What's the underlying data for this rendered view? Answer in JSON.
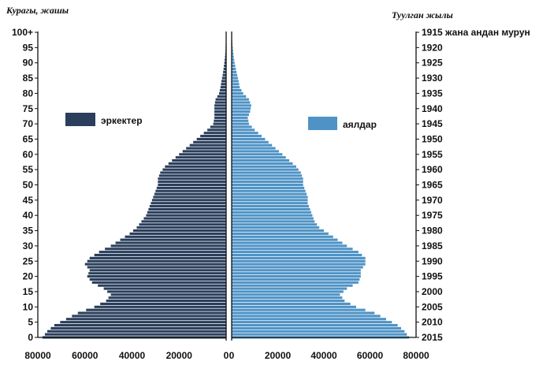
{
  "chart_data": {
    "type": "bar",
    "orientation": "horizontal",
    "subtype": "population-pyramid",
    "left_title": "Курагы, жашы",
    "right_title": "Туулган жылы",
    "age_tick_labels": [
      "100+",
      "95",
      "90",
      "85",
      "80",
      "75",
      "70",
      "65",
      "60",
      "55",
      "50",
      "45",
      "40",
      "35",
      "30",
      "25",
      "20",
      "15",
      "10",
      "5",
      "0"
    ],
    "year_tick_labels": [
      "1915 жана андан мурун",
      "1920",
      "1925",
      "1930",
      "1935",
      "1940",
      "1945",
      "1950",
      "1955",
      "1960",
      "1965",
      "1970",
      "1975",
      "1980",
      "1985",
      "1990",
      "1995",
      "2000",
      "2005",
      "2010",
      "2015"
    ],
    "x_tick_labels_left": [
      "80000",
      "60000",
      "40000",
      "20000",
      "0"
    ],
    "x_tick_labels_right": [
      "0",
      "20000",
      "40000",
      "60000",
      "80000"
    ],
    "xlim": [
      0,
      80000
    ],
    "age_range": [
      0,
      100
    ],
    "legend": {
      "position": "inside"
    },
    "series": [
      {
        "name": "эркектер",
        "side": "left",
        "color": "#2b3f5c",
        "age_points": [
          0,
          2,
          4,
          6,
          8,
          10,
          12,
          14,
          16,
          18,
          20,
          22,
          24,
          26,
          28,
          30,
          32,
          34,
          36,
          38,
          40,
          42,
          44,
          46,
          48,
          50,
          52,
          54,
          56,
          58,
          60,
          62,
          64,
          66,
          68,
          70,
          72,
          74,
          76,
          78,
          80,
          82,
          84,
          86,
          88,
          90,
          92,
          94,
          96,
          98,
          100
        ],
        "values": [
          78000,
          76000,
          73000,
          68000,
          63000,
          56000,
          51000,
          49000,
          52000,
          57000,
          59000,
          58000,
          60000,
          58000,
          54000,
          49000,
          45000,
          41000,
          38000,
          36000,
          34000,
          33000,
          32000,
          31000,
          30000,
          29000,
          29000,
          28000,
          26000,
          23000,
          20000,
          17000,
          14000,
          11000,
          8000,
          5500,
          5000,
          5000,
          5000,
          4500,
          3000,
          2400,
          2000,
          1500,
          1100,
          800,
          500,
          300,
          200,
          100,
          50
        ]
      },
      {
        "name": "аялдар",
        "side": "right",
        "color": "#4f93c6",
        "age_points": [
          0,
          2,
          4,
          6,
          8,
          10,
          12,
          14,
          16,
          18,
          20,
          22,
          24,
          26,
          28,
          30,
          32,
          34,
          36,
          38,
          40,
          42,
          44,
          46,
          48,
          50,
          52,
          54,
          56,
          58,
          60,
          62,
          64,
          66,
          68,
          70,
          72,
          74,
          76,
          78,
          80,
          82,
          84,
          86,
          88,
          90,
          92,
          94,
          96,
          98,
          100
        ],
        "values": [
          77000,
          75000,
          72000,
          67000,
          62000,
          54000,
          49000,
          47000,
          50000,
          55000,
          56000,
          56000,
          58000,
          58000,
          55000,
          50000,
          46000,
          42000,
          38000,
          36000,
          35000,
          34000,
          33000,
          33000,
          32000,
          31000,
          31000,
          30000,
          28000,
          25000,
          22000,
          19000,
          16000,
          13000,
          10000,
          7500,
          7000,
          8000,
          8500,
          7500,
          5000,
          3500,
          3000,
          2400,
          1800,
          1300,
          900,
          600,
          350,
          200,
          100
        ]
      }
    ]
  }
}
